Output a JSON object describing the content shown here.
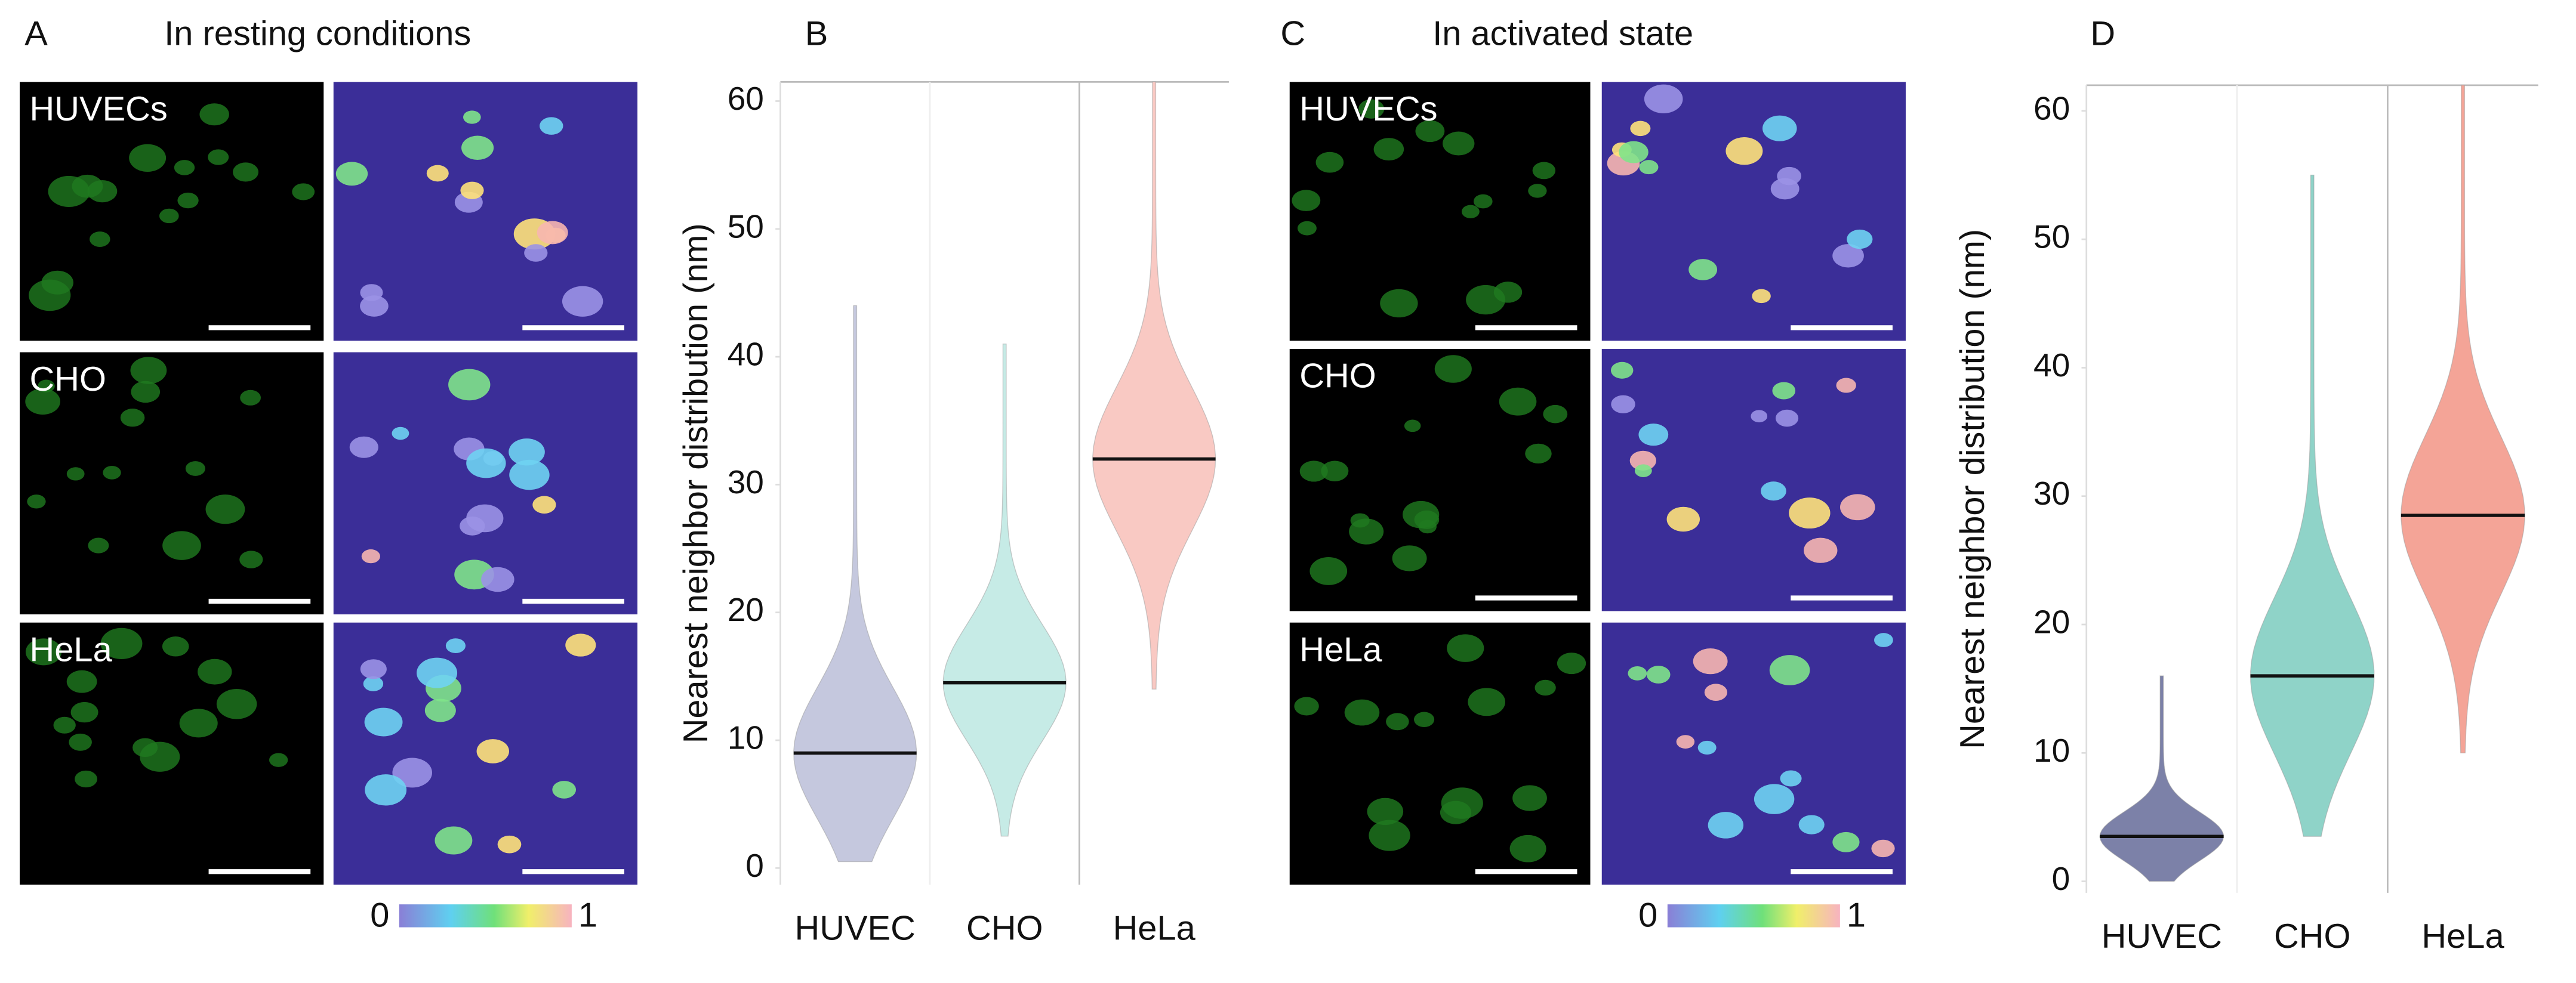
{
  "panels": [
    {
      "label": "A",
      "title": "In resting conditions",
      "rows": [
        "HUVECs",
        "CHO",
        "HeLa"
      ],
      "colorbar": {
        "min": 0,
        "max": 1
      }
    },
    {
      "label": "C",
      "title": "In activated state",
      "rows": [
        "HUVECs",
        "CHO",
        "HeLa"
      ],
      "colorbar": {
        "min": 0,
        "max": 1
      }
    }
  ],
  "chart_data": [
    {
      "type": "violin",
      "panel_label": "B",
      "y_label": "Nearest neighbor distribution (nm)",
      "categories": [
        "HUVEC",
        "CHO",
        "HeLa"
      ],
      "colors": [
        "#c5c8de",
        "#c6ebe6",
        "#f9c9c3"
      ],
      "median": [
        9,
        14.5,
        32
      ],
      "min": [
        0.5,
        2.5,
        14
      ],
      "max": [
        44,
        41,
        61.5
      ],
      "ylim": [
        -1.3,
        61.5
      ],
      "yticks": [
        0,
        10,
        20,
        30,
        40,
        50,
        60
      ]
    },
    {
      "type": "violin",
      "panel_label": "D",
      "y_label": "Nearest neighbor distribution (nm)",
      "categories": [
        "HUVEC",
        "CHO",
        "HeLa"
      ],
      "colors": [
        "#7c81a8",
        "#8fd3c8",
        "#f4a497"
      ],
      "median": [
        3.5,
        16,
        28.5
      ],
      "min": [
        0,
        3.5,
        10
      ],
      "max": [
        16,
        55,
        62
      ],
      "ylim": [
        -0.9,
        62
      ],
      "yticks": [
        0,
        10,
        20,
        30,
        40,
        50,
        60
      ]
    }
  ]
}
